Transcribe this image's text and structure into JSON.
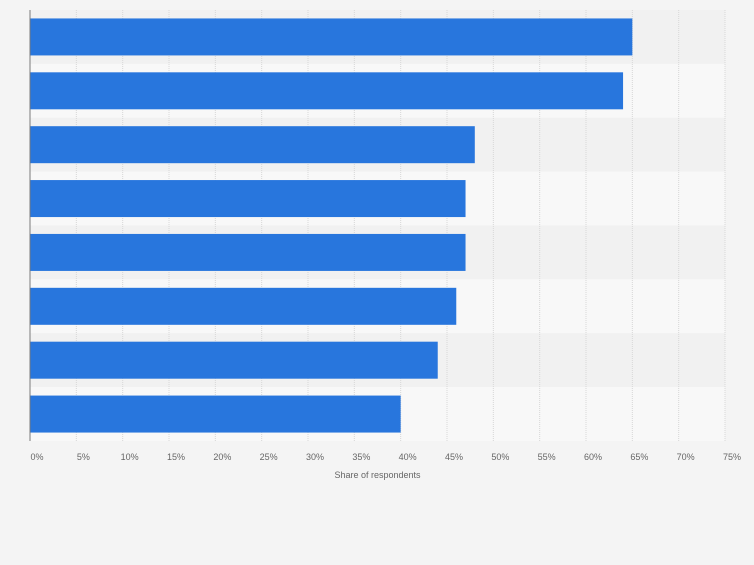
{
  "colors": {
    "bar": "#2876dd",
    "background": "#f4f4f4",
    "band_light": "#f8f8f8",
    "band_dark": "#f1f1f1",
    "grid": "#d7d7d7",
    "axis": "#7a7a7a",
    "tick_text": "#666666"
  },
  "chart_data": {
    "type": "bar",
    "orientation": "horizontal",
    "categories": [
      "",
      "",
      "",
      "",
      "",
      "",
      "",
      ""
    ],
    "values": [
      65,
      64,
      48,
      47,
      47,
      46,
      44,
      40
    ],
    "xlabel": "Share of respondents",
    "ylabel": "",
    "xlim": [
      0,
      75
    ],
    "x_ticks": [
      0,
      5,
      10,
      15,
      20,
      25,
      30,
      35,
      40,
      45,
      50,
      55,
      60,
      65,
      70,
      75
    ],
    "x_tick_labels": [
      "0%",
      "5%",
      "10%",
      "15%",
      "20%",
      "25%",
      "30%",
      "35%",
      "40%",
      "45%",
      "50%",
      "55%",
      "60%",
      "65%",
      "70%",
      "75%"
    ],
    "grid": true,
    "legend": "none"
  }
}
